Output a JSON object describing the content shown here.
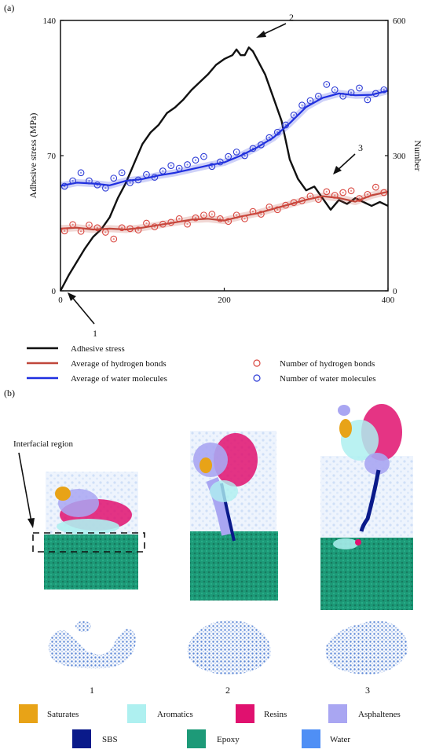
{
  "panel_a_label": "(a)",
  "panel_b_label": "(b)",
  "chart_data": {
    "type": "line",
    "xlim": [
      0,
      400
    ],
    "x_ticks": [
      0,
      200,
      400
    ],
    "ylim_left": [
      0,
      140
    ],
    "y_left_ticks": [
      0,
      70,
      140
    ],
    "ylabel_left": "Adhesive stress (MPa)",
    "ylim_right": [
      0,
      600
    ],
    "y_right_ticks": [
      0,
      300,
      600
    ],
    "ylabel_right": "Number",
    "grid": false,
    "legend_position": "below",
    "series": [
      {
        "name": "Adhesive stress",
        "axis": "left",
        "color": "#111111",
        "x": [
          0,
          10,
          20,
          30,
          40,
          50,
          60,
          70,
          80,
          90,
          100,
          110,
          120,
          130,
          140,
          150,
          160,
          170,
          180,
          190,
          200,
          210,
          215,
          220,
          225,
          230,
          235,
          240,
          250,
          260,
          270,
          280,
          290,
          300,
          310,
          320,
          330,
          340,
          350,
          360,
          370,
          380,
          390,
          400
        ],
        "values": [
          0,
          8,
          15,
          22,
          28,
          32,
          38,
          48,
          56,
          66,
          76,
          82,
          86,
          92,
          95,
          99,
          104,
          108,
          112,
          117,
          120,
          122,
          125,
          122,
          122,
          126,
          124,
          120,
          112,
          100,
          88,
          68,
          58,
          52,
          54,
          48,
          42,
          47,
          45,
          48,
          46,
          44,
          46,
          44
        ]
      },
      {
        "name": "Average of hydrogen bonds",
        "axis": "right",
        "color": "#c0473b",
        "x": [
          0,
          20,
          40,
          60,
          80,
          100,
          120,
          140,
          160,
          180,
          200,
          220,
          240,
          260,
          280,
          300,
          320,
          340,
          360,
          380,
          400
        ],
        "values": [
          138,
          140,
          136,
          138,
          136,
          140,
          146,
          152,
          158,
          160,
          156,
          165,
          172,
          182,
          192,
          202,
          210,
          206,
          198,
          212,
          220
        ]
      },
      {
        "name": "Average of water molecules",
        "axis": "right",
        "color": "#1f2fe0",
        "x": [
          0,
          20,
          40,
          60,
          80,
          100,
          120,
          140,
          160,
          180,
          200,
          220,
          240,
          260,
          280,
          300,
          320,
          340,
          360,
          380,
          400
        ],
        "values": [
          233,
          240,
          238,
          234,
          244,
          248,
          256,
          262,
          270,
          278,
          285,
          300,
          318,
          340,
          372,
          408,
          428,
          438,
          434,
          435,
          444
        ]
      },
      {
        "name": "Number of hydrogen bonds",
        "axis": "right",
        "color": "#d9463f",
        "marker": "open-circle",
        "x": [
          5,
          15,
          25,
          35,
          45,
          55,
          65,
          75,
          85,
          95,
          105,
          115,
          125,
          135,
          145,
          155,
          165,
          175,
          185,
          195,
          205,
          215,
          225,
          235,
          245,
          255,
          265,
          275,
          285,
          295,
          305,
          315,
          325,
          335,
          345,
          355,
          365,
          375,
          385,
          395
        ],
        "values": [
          133,
          147,
          132,
          146,
          140,
          130,
          115,
          140,
          138,
          135,
          150,
          142,
          148,
          152,
          160,
          148,
          162,
          168,
          170,
          160,
          154,
          168,
          160,
          176,
          170,
          186,
          180,
          190,
          196,
          200,
          210,
          203,
          220,
          212,
          218,
          222,
          205,
          214,
          230,
          218
        ]
      },
      {
        "name": "Number of water molecules",
        "axis": "right",
        "color": "#2b3ad6",
        "marker": "open-circle",
        "x": [
          5,
          15,
          25,
          35,
          45,
          55,
          65,
          75,
          85,
          95,
          105,
          115,
          125,
          135,
          145,
          155,
          165,
          175,
          185,
          195,
          205,
          215,
          225,
          235,
          245,
          255,
          265,
          275,
          285,
          295,
          305,
          315,
          325,
          335,
          345,
          355,
          365,
          375,
          385,
          395
        ],
        "values": [
          232,
          244,
          262,
          244,
          235,
          228,
          250,
          262,
          240,
          246,
          258,
          252,
          266,
          278,
          272,
          280,
          290,
          298,
          276,
          286,
          298,
          308,
          300,
          316,
          324,
          340,
          352,
          368,
          390,
          412,
          422,
          432,
          458,
          446,
          432,
          440,
          450,
          424,
          438,
          446
        ]
      }
    ],
    "annotations": [
      "1",
      "2",
      "3"
    ]
  },
  "legend": [
    {
      "label": "Adhesive stress",
      "type": "line",
      "color": "#111111"
    },
    {
      "label": "Average of hydrogen bonds",
      "type": "line",
      "color": "#c0473b"
    },
    {
      "label": "Average of water molecules",
      "type": "line",
      "color": "#1f2fe0"
    },
    {
      "label": "Number of hydrogen bonds",
      "type": "circle",
      "color": "#d9463f"
    },
    {
      "label": "Number of water molecules",
      "type": "circle",
      "color": "#2b3ad6"
    }
  ],
  "panel_b": {
    "interfacial_label": "Interfacial region",
    "snapshot_labels": [
      "1",
      "2",
      "3"
    ],
    "component_legend": [
      {
        "label": "Saturates",
        "color": "#e8a317"
      },
      {
        "label": "Aromatics",
        "color": "#aef0f0"
      },
      {
        "label": "Resins",
        "color": "#e0116f"
      },
      {
        "label": "Asphaltenes",
        "color": "#a9a6f2"
      },
      {
        "label": "SBS",
        "color": "#0a1a8a"
      },
      {
        "label": "Epoxy",
        "color": "#1d9a78"
      },
      {
        "label": "Water",
        "color": "#4f8ff5"
      }
    ]
  }
}
